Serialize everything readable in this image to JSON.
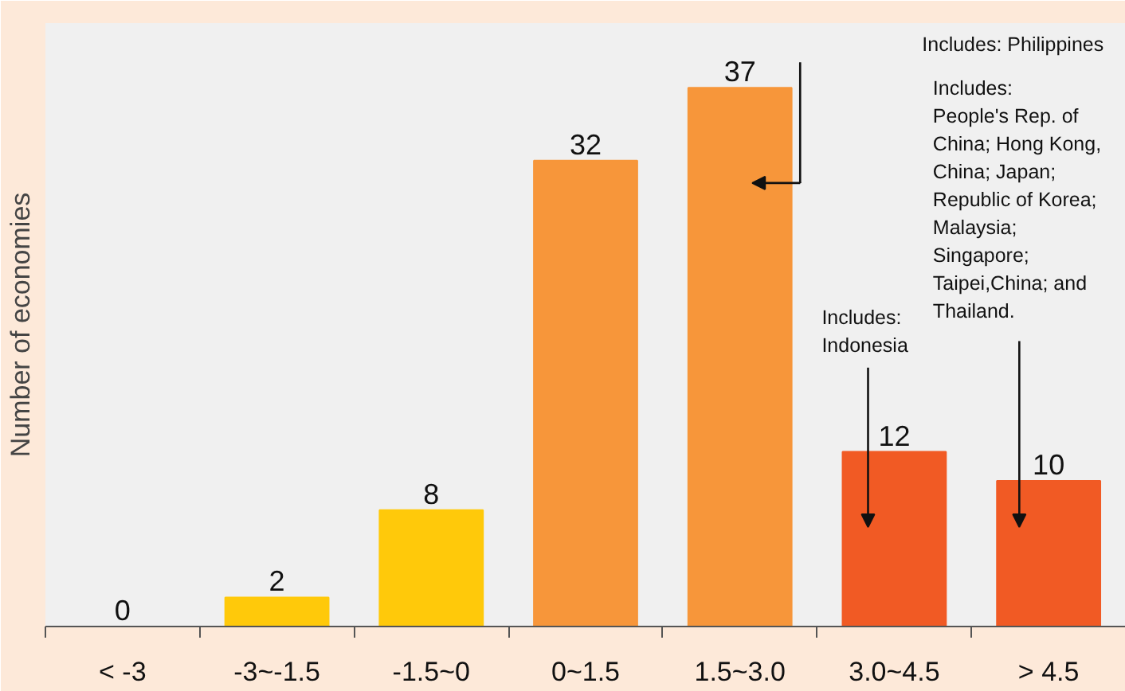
{
  "chart_data": {
    "type": "bar",
    "ylabel": "Number of economies",
    "categories": [
      "< -3",
      "-3~-1.5",
      "-1.5~0",
      "0~1.5",
      "1.5~3.0",
      "3.0~4.5",
      "> 4.5"
    ],
    "values": [
      0,
      2,
      8,
      32,
      37,
      12,
      10
    ],
    "colors": [
      "#ffc90a",
      "#ffc90a",
      "#ffc90a",
      "#f7963a",
      "#f7963a",
      "#f15a24",
      "#f15a24"
    ],
    "data_labels": true,
    "grid": false,
    "tick_labels": "x",
    "annotations": [
      "Includes: Philippines",
      "Includes:\nIndonesia",
      "Includes:\nPeople's Rep. of\nChina; Hong Kong,\nChina; Japan;\nRepublic of Korea;\nMalaysia;\nSingapore;\nTaipei,China; and\nThailand."
    ]
  }
}
